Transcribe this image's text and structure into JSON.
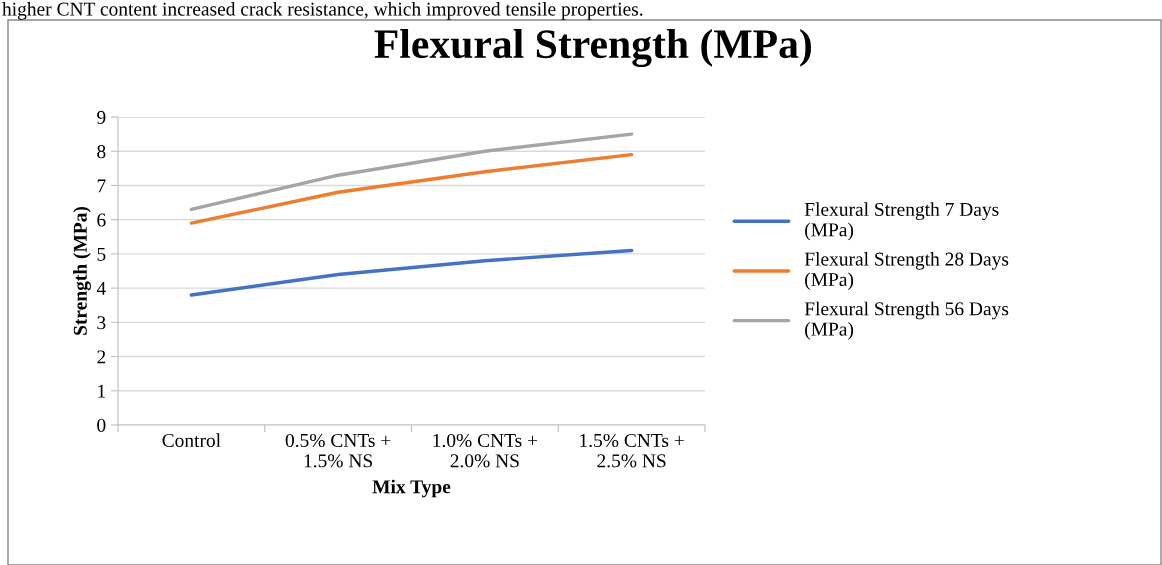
{
  "chart_data": {
    "type": "line",
    "title": "Flexural Strength (MPa)",
    "xlabel": "Mix Type",
    "ylabel": "Strength (MPa)",
    "annotations": [
      "higher CNT content increased crack resistance, which improved tensile properties."
    ],
    "categories": [
      "Control",
      "0.5% CNTs +\n1.5% NS",
      "1.0% CNTs +\n2.0% NS",
      "1.5% CNTs +\n2.5% NS"
    ],
    "series": [
      {
        "name": "Flexural Strength 7 Days (MPa)",
        "color": "#4472c4",
        "values": [
          3.8,
          4.4,
          4.8,
          5.1
        ]
      },
      {
        "name": "Flexural Strength 28 Days (MPa)",
        "color": "#ed7d31",
        "values": [
          5.9,
          6.8,
          7.4,
          7.9
        ]
      },
      {
        "name": "Flexural Strength 56 Days (MPa)",
        "color": "#a5a5a5",
        "values": [
          6.3,
          7.3,
          8.0,
          8.5
        ]
      }
    ],
    "ylim": [
      0,
      9
    ],
    "yticks": [
      0,
      1,
      2,
      3,
      4,
      5,
      6,
      7,
      8,
      9
    ],
    "grid": "y",
    "legend": "right",
    "marker": "none",
    "line_style": "solid"
  }
}
